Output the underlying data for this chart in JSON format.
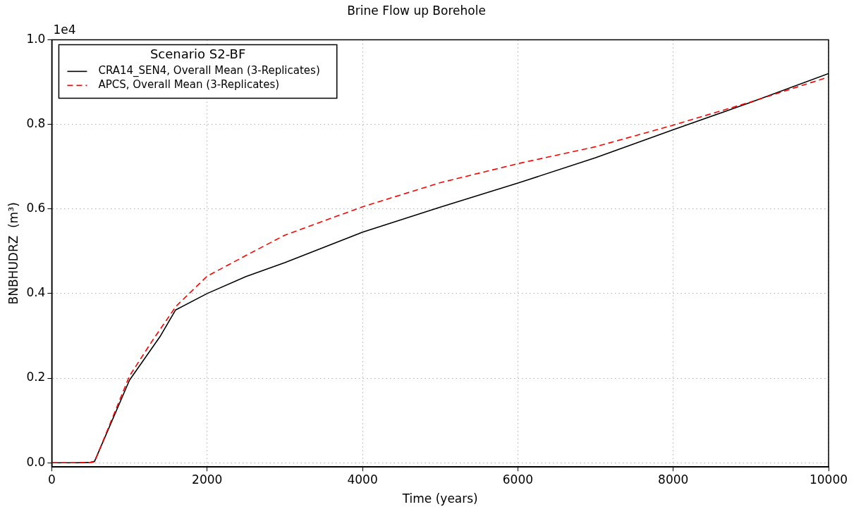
{
  "chart_data": {
    "type": "line",
    "title": "Brine Flow up Borehole",
    "xlabel": "Time (years)",
    "ylabel": "BNBHUDRZ  (m³)",
    "legend_title": "Scenario S2-BF",
    "legend": "top left",
    "grid": true,
    "marker": "none",
    "annotations": [
      "1e4"
    ],
    "xlim": [
      0,
      10000
    ],
    "xticks": [
      0,
      2000,
      4000,
      6000,
      8000,
      10000
    ],
    "ylim": [
      -0.01,
      1.0
    ],
    "yticks": [
      {
        "value": 0,
        "label": "0.0"
      },
      0.2,
      0.4,
      0.6,
      0.8,
      {
        "value": 1,
        "label": "1.0"
      }
    ],
    "series": [
      {
        "name": "CRA14_SEN4, Overall Mean (3-Replicates)",
        "color": "#000000",
        "line_style": "solid",
        "x": [
          0,
          300,
          500,
          550,
          1000,
          1400,
          1593,
          2000,
          2500,
          3000,
          4000,
          5000,
          6000,
          7000,
          8000,
          9000,
          10000
        ],
        "values": [
          0,
          0,
          0.001,
          0.003,
          0.195,
          0.3,
          0.361,
          0.4,
          0.44,
          0.473,
          0.545,
          0.604,
          0.661,
          0.721,
          0.787,
          0.852,
          0.92
        ]
      },
      {
        "name": "APCS, Overall Mean (3-Replicates)",
        "color": "#ff0000",
        "line_style": "dashed",
        "x": [
          0,
          300,
          500,
          550,
          1000,
          1300,
          1600,
          2000,
          2500,
          3000,
          4000,
          5000,
          6000,
          7000,
          8000,
          9000,
          10000
        ],
        "values": [
          0,
          0,
          0.001,
          0.002,
          0.205,
          0.29,
          0.37,
          0.441,
          0.49,
          0.538,
          0.605,
          0.662,
          0.707,
          0.747,
          0.798,
          0.853,
          0.912
        ]
      }
    ]
  }
}
